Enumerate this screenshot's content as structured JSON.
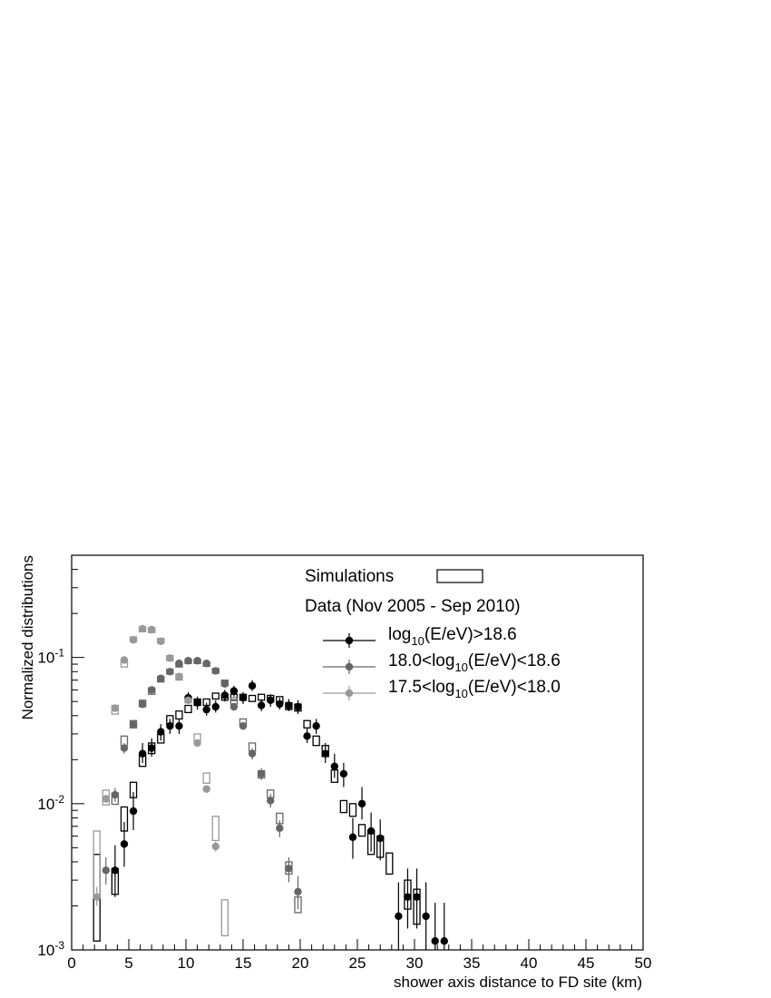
{
  "chart_data": {
    "type": "scatter",
    "xlabel": "shower axis distance to FD site (km)",
    "ylabel": "Normalized distributions",
    "xlim": [
      0,
      50
    ],
    "ylim": [
      0.001,
      0.5
    ],
    "yscale": "log",
    "grid": false,
    "legend_position": "top-right",
    "x_ticks": [
      "0",
      "5",
      "10",
      "15",
      "20",
      "25",
      "30",
      "35",
      "40",
      "45",
      "50"
    ],
    "y_ticks": [
      {
        "base": "10",
        "exp": "-3",
        "value": 0.001
      },
      {
        "base": "10",
        "exp": "-2",
        "value": 0.01
      },
      {
        "base": "10",
        "exp": "-1",
        "value": 0.1
      }
    ],
    "legend": {
      "simulations_label": "Simulations",
      "data_label": "Data (Nov 2005 - Sep 2010)",
      "entries": [
        {
          "pre": "log",
          "sub": "10",
          "post": "(E/eV)>18.6",
          "color": "#000000"
        },
        {
          "pre": "18.0<log",
          "sub": "10",
          "post": "(E/eV)<18.6",
          "color": "#666666"
        },
        {
          "pre": "17.5<log",
          "sub": "10",
          "post": "(E/eV)<18.0",
          "color": "#999999"
        }
      ]
    },
    "series": [
      {
        "color": "#000000",
        "bin_width": 0.8,
        "points": [
          [
            3.8,
            0.0035,
            0.0023,
            0.0052
          ],
          [
            4.6,
            0.0053,
            0.0037,
            0.0075
          ],
          [
            5.4,
            0.0089,
            0.0066,
            0.012
          ],
          [
            6.2,
            0.022,
            0.019,
            0.026
          ],
          [
            7.0,
            0.024,
            0.021,
            0.028
          ],
          [
            7.8,
            0.031,
            0.027,
            0.035
          ],
          [
            8.6,
            0.034,
            0.03,
            0.038
          ],
          [
            9.4,
            0.034,
            0.03,
            0.038
          ],
          [
            10.2,
            0.053,
            0.048,
            0.058
          ],
          [
            11.0,
            0.049,
            0.044,
            0.054
          ],
          [
            11.8,
            0.044,
            0.04,
            0.049
          ],
          [
            12.6,
            0.046,
            0.042,
            0.051
          ],
          [
            13.4,
            0.055,
            0.05,
            0.06
          ],
          [
            14.2,
            0.059,
            0.054,
            0.064
          ],
          [
            15.0,
            0.053,
            0.048,
            0.058
          ],
          [
            15.8,
            0.064,
            0.059,
            0.07
          ],
          [
            16.6,
            0.047,
            0.043,
            0.052
          ],
          [
            17.4,
            0.051,
            0.046,
            0.056
          ],
          [
            18.2,
            0.048,
            0.044,
            0.053
          ],
          [
            19.0,
            0.047,
            0.043,
            0.052
          ],
          [
            19.8,
            0.046,
            0.041,
            0.051
          ],
          [
            20.6,
            0.029,
            0.026,
            0.033
          ],
          [
            21.4,
            0.034,
            0.03,
            0.038
          ],
          [
            22.2,
            0.022,
            0.019,
            0.026
          ],
          [
            23.0,
            0.018,
            0.015,
            0.022
          ],
          [
            23.8,
            0.016,
            0.013,
            0.019
          ],
          [
            24.6,
            0.0059,
            0.0042,
            0.008
          ],
          [
            25.4,
            0.01,
            0.0078,
            0.013
          ],
          [
            26.2,
            0.0065,
            0.0047,
            0.0087
          ],
          [
            27.0,
            0.0058,
            0.0041,
            0.0078
          ],
          [
            28.6,
            0.0017,
            0.0009,
            0.0029
          ],
          [
            29.4,
            0.0023,
            0.0014,
            0.0036
          ],
          [
            30.2,
            0.0023,
            0.0014,
            0.0036
          ],
          [
            31.0,
            0.0017,
            0.0009,
            0.0029
          ],
          [
            31.8,
            0.00115,
            0.0005,
            0.0021
          ],
          [
            32.6,
            0.00115,
            0.0005,
            0.0021
          ]
        ],
        "simulation": [
          [
            2.2,
            0.00115,
            0.0045
          ],
          [
            3.8,
            0.0024,
            0.0036
          ],
          [
            4.6,
            0.0065,
            0.0095
          ],
          [
            5.4,
            0.011,
            0.014
          ],
          [
            6.2,
            0.018,
            0.022
          ],
          [
            7.0,
            0.022,
            0.026
          ],
          [
            7.8,
            0.026,
            0.03
          ],
          [
            8.6,
            0.035,
            0.04
          ],
          [
            9.4,
            0.038,
            0.043
          ],
          [
            10.2,
            0.042,
            0.047
          ],
          [
            11.0,
            0.047,
            0.052
          ],
          [
            11.8,
            0.047,
            0.052
          ],
          [
            12.6,
            0.052,
            0.057
          ],
          [
            13.4,
            0.051,
            0.056
          ],
          [
            14.2,
            0.051,
            0.056
          ],
          [
            15.0,
            0.051,
            0.056
          ],
          [
            15.8,
            0.05,
            0.055
          ],
          [
            16.6,
            0.051,
            0.056
          ],
          [
            17.4,
            0.05,
            0.055
          ],
          [
            18.2,
            0.049,
            0.054
          ],
          [
            19.0,
            0.044,
            0.049
          ],
          [
            19.8,
            0.043,
            0.048
          ],
          [
            20.6,
            0.033,
            0.037
          ],
          [
            21.4,
            0.025,
            0.029
          ],
          [
            22.2,
            0.021,
            0.025
          ],
          [
            23.0,
            0.014,
            0.017
          ],
          [
            23.8,
            0.0087,
            0.0105
          ],
          [
            24.6,
            0.0082,
            0.01
          ],
          [
            25.4,
            0.006,
            0.0072
          ],
          [
            26.2,
            0.0045,
            0.0065
          ],
          [
            27.0,
            0.0043,
            0.006
          ],
          [
            27.8,
            0.0033,
            0.0046
          ],
          [
            29.4,
            0.0019,
            0.003
          ],
          [
            30.2,
            0.0015,
            0.0026
          ]
        ]
      },
      {
        "color": "#666666",
        "bin_width": 0.8,
        "points": [
          [
            3.0,
            0.0035,
            0.0028,
            0.0043
          ],
          [
            3.8,
            0.0115,
            0.0103,
            0.0128
          ],
          [
            4.6,
            0.024,
            0.022,
            0.026
          ],
          [
            5.4,
            0.035,
            0.033,
            0.037
          ],
          [
            6.2,
            0.048,
            0.045,
            0.051
          ],
          [
            7.0,
            0.06,
            0.057,
            0.063
          ],
          [
            7.8,
            0.072,
            0.069,
            0.075
          ],
          [
            8.6,
            0.08,
            0.077,
            0.083
          ],
          [
            9.4,
            0.091,
            0.088,
            0.094
          ],
          [
            10.2,
            0.095,
            0.092,
            0.098
          ],
          [
            11.0,
            0.095,
            0.092,
            0.098
          ],
          [
            11.8,
            0.091,
            0.088,
            0.094
          ],
          [
            12.6,
            0.081,
            0.078,
            0.084
          ],
          [
            13.4,
            0.066,
            0.063,
            0.069
          ],
          [
            14.2,
            0.046,
            0.044,
            0.048
          ],
          [
            15.0,
            0.034,
            0.032,
            0.036
          ],
          [
            15.8,
            0.022,
            0.02,
            0.024
          ],
          [
            16.6,
            0.016,
            0.0145,
            0.0175
          ],
          [
            17.4,
            0.0105,
            0.0094,
            0.0117
          ],
          [
            18.2,
            0.0068,
            0.0059,
            0.0077
          ],
          [
            19.0,
            0.0036,
            0.0029,
            0.0043
          ],
          [
            19.8,
            0.0025,
            0.0019,
            0.0032
          ]
        ],
        "simulation": [
          [
            3.8,
            0.0099,
            0.0118
          ],
          [
            4.6,
            0.025,
            0.029
          ],
          [
            5.4,
            0.033,
            0.037
          ],
          [
            6.2,
            0.046,
            0.051
          ],
          [
            7.0,
            0.056,
            0.062
          ],
          [
            7.8,
            0.068,
            0.074
          ],
          [
            8.6,
            0.077,
            0.083
          ],
          [
            9.4,
            0.086,
            0.092
          ],
          [
            10.2,
            0.091,
            0.097
          ],
          [
            11.0,
            0.091,
            0.097
          ],
          [
            11.8,
            0.087,
            0.093
          ],
          [
            12.6,
            0.078,
            0.084
          ],
          [
            13.4,
            0.064,
            0.07
          ],
          [
            14.2,
            0.048,
            0.053
          ],
          [
            15.0,
            0.034,
            0.038
          ],
          [
            15.8,
            0.023,
            0.026
          ],
          [
            16.6,
            0.015,
            0.0168
          ],
          [
            17.4,
            0.011,
            0.0124
          ],
          [
            18.2,
            0.0073,
            0.0086
          ],
          [
            19.0,
            0.0033,
            0.004
          ],
          [
            19.8,
            0.0018,
            0.0023
          ]
        ]
      },
      {
        "color": "#999999",
        "bin_width": 0.8,
        "points": [
          [
            2.2,
            0.0023,
            0.002,
            0.0027
          ],
          [
            3.0,
            0.0108,
            0.0101,
            0.0115
          ],
          [
            3.8,
            0.045,
            0.043,
            0.047
          ],
          [
            4.6,
            0.096,
            0.093,
            0.099
          ],
          [
            5.4,
            0.132,
            0.128,
            0.136
          ],
          [
            6.2,
            0.157,
            0.153,
            0.161
          ],
          [
            7.0,
            0.155,
            0.151,
            0.159
          ],
          [
            7.8,
            0.129,
            0.125,
            0.133
          ],
          [
            8.6,
            0.099,
            0.096,
            0.102
          ],
          [
            9.4,
            0.074,
            0.071,
            0.077
          ],
          [
            10.2,
            0.051,
            0.049,
            0.053
          ],
          [
            11.0,
            0.026,
            0.025,
            0.027
          ],
          [
            11.8,
            0.0126,
            0.0119,
            0.0133
          ],
          [
            12.6,
            0.0051,
            0.0047,
            0.0055
          ]
        ],
        "simulation": [
          [
            2.2,
            0.0023,
            0.0065
          ],
          [
            3.0,
            0.0098,
            0.0124
          ],
          [
            3.8,
            0.041,
            0.047
          ],
          [
            4.6,
            0.086,
            0.094
          ],
          [
            5.4,
            0.128,
            0.138
          ],
          [
            6.2,
            0.15,
            0.162
          ],
          [
            7.0,
            0.148,
            0.16
          ],
          [
            7.8,
            0.125,
            0.135
          ],
          [
            8.6,
            0.095,
            0.103
          ],
          [
            9.4,
            0.07,
            0.077
          ],
          [
            10.2,
            0.049,
            0.054
          ],
          [
            11.0,
            0.027,
            0.03
          ],
          [
            11.8,
            0.0138,
            0.0162
          ],
          [
            12.6,
            0.0056,
            0.0082
          ],
          [
            13.4,
            0.00125,
            0.0022
          ]
        ]
      }
    ]
  }
}
